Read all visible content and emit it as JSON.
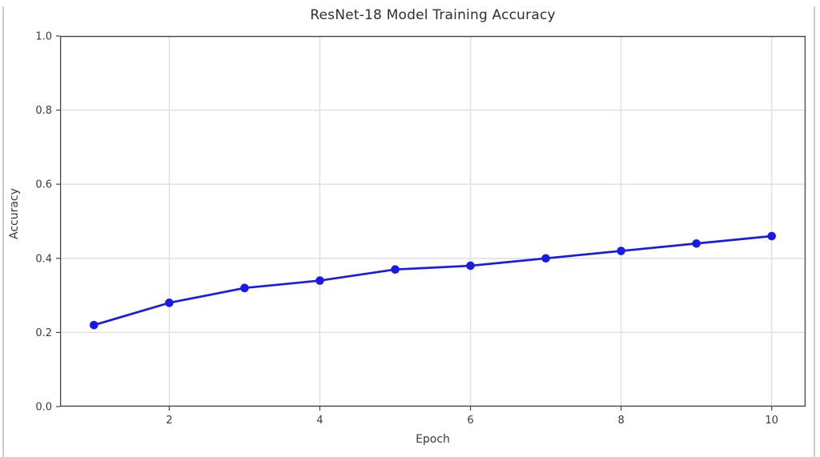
{
  "figure": {
    "background_color": "#ffffff",
    "edge_border_color": "#cccccc",
    "spine_color": "#454545",
    "grid_color": "#dedede",
    "tick_text_color": "#3a3a3a"
  },
  "chart_data": {
    "type": "line",
    "title": "ResNet-18 Model Training Accuracy",
    "xlabel": "Epoch",
    "ylabel": "Accuracy",
    "x": [
      1,
      2,
      3,
      4,
      5,
      6,
      7,
      8,
      9,
      10
    ],
    "series": [
      {
        "color": "#1a1ae8",
        "marker": "circle",
        "values": [
          0.22,
          0.28,
          0.32,
          0.34,
          0.37,
          0.38,
          0.4,
          0.42,
          0.44,
          0.46
        ]
      }
    ],
    "xlim": [
      0.55,
      10.45
    ],
    "ylim": [
      0.0,
      1.0
    ],
    "xticks": [
      2,
      4,
      6,
      8,
      10
    ],
    "xtick_labels": [
      "2",
      "4",
      "6",
      "8",
      "10"
    ],
    "yticks": [
      0.0,
      0.2,
      0.4,
      0.6,
      0.8,
      1.0
    ],
    "ytick_labels": [
      "0.0",
      "0.2",
      "0.4",
      "0.6",
      "0.8",
      "1.0"
    ],
    "grid": true,
    "legend": "none"
  }
}
